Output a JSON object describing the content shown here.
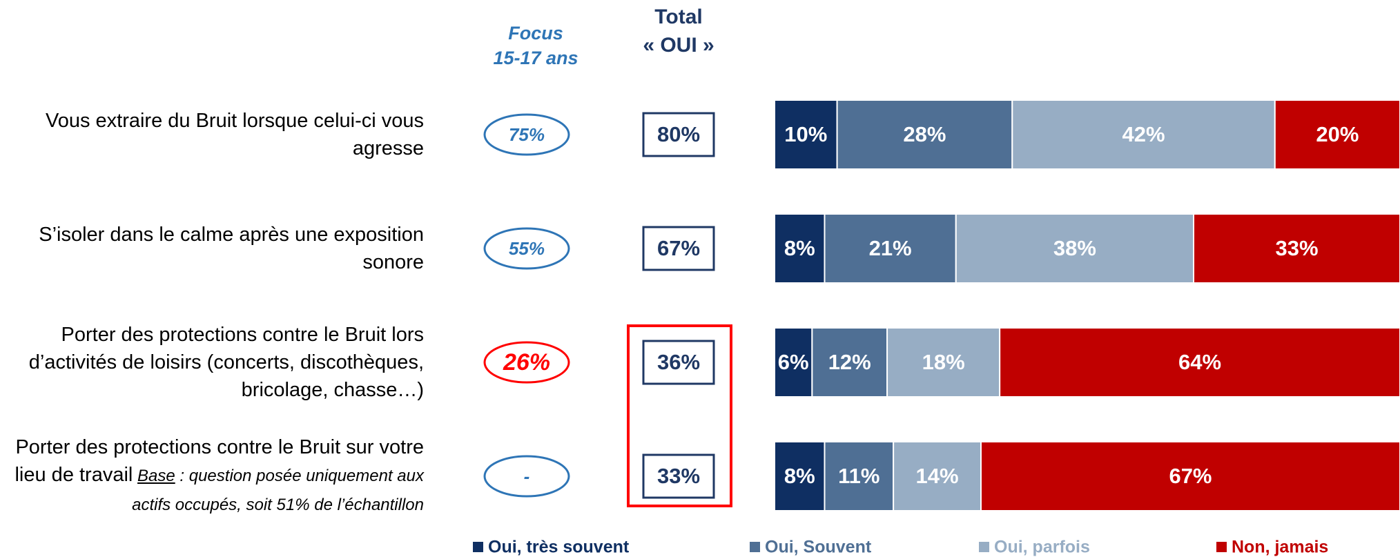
{
  "chart_data": {
    "type": "stacked_bar_horizontal",
    "categories": [
      "Vous extraire du Bruit lorsque celui-ci vous agresse",
      "S’isoler dans le calme après une exposition sonore",
      "Porter des protections contre le Bruit lors d’activités de loisirs (concerts, discothèques, bricolage, chasse…)",
      "Porter des protections contre le Bruit sur votre lieu de travail"
    ],
    "note_label": "Base",
    "note_text": " : question posée uniquement aux actifs occupés, soit 51% de l’échantillon",
    "xlim": [
      0,
      100
    ],
    "series": [
      {
        "name": "Oui, très souvent",
        "color": "#0f2f62",
        "values": [
          10,
          8,
          6,
          8
        ],
        "value_labels": [
          "10%",
          "8%",
          "6%",
          "8%"
        ]
      },
      {
        "name": "Oui, Souvent",
        "color": "#4f6f94",
        "values": [
          28,
          21,
          12,
          11
        ],
        "value_labels": [
          "28%",
          "21%",
          "12%",
          "11%"
        ]
      },
      {
        "name": "Oui, parfois",
        "color": "#97adc4",
        "values": [
          42,
          38,
          18,
          14
        ],
        "value_labels": [
          "42%",
          "38%",
          "18%",
          "14%"
        ]
      },
      {
        "name": "Non, jamais",
        "color": "#c00000",
        "values": [
          20,
          33,
          64,
          67
        ],
        "value_labels": [
          "20%",
          "33%",
          "64%",
          "67%"
        ]
      }
    ],
    "focus": {
      "title": [
        "Focus",
        "15-17 ans"
      ],
      "values": [
        75,
        55,
        26,
        null
      ],
      "value_labels": [
        "75%",
        "55%",
        "26%",
        "-"
      ],
      "colors": [
        "#2e75b6",
        "#2e75b6",
        "#ff0000",
        "#2e75b6"
      ]
    },
    "total": {
      "title": [
        "Total",
        "« OUI »"
      ],
      "values": [
        80,
        67,
        36,
        33
      ],
      "value_labels": [
        "80%",
        "67%",
        "36%",
        "33%"
      ],
      "color": "#1f3864"
    }
  }
}
